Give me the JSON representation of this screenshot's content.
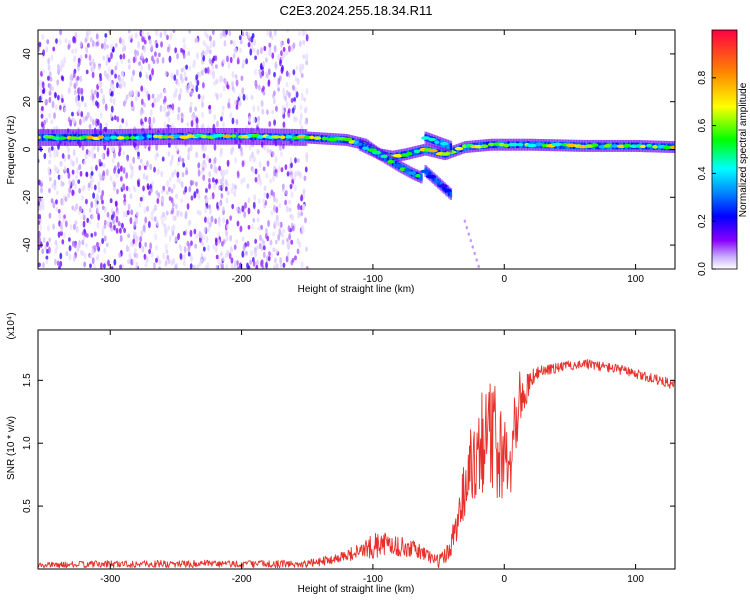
{
  "title": "C2E3.2024.255.18.34.R11",
  "chart_data": [
    {
      "type": "heatmap",
      "xlabel": "Height of straight line (km)",
      "ylabel": "Frequency (Hz)",
      "xlim": [
        -355,
        130
      ],
      "ylim": [
        -50,
        50
      ],
      "x_ticks": [
        -300,
        -200,
        -100,
        0,
        100
      ],
      "x_tick_labels": [
        "-300",
        "-200",
        "-100",
        "0",
        "100"
      ],
      "y_ticks": [
        -40,
        -20,
        0,
        20,
        40
      ],
      "y_tick_labels": [
        "-40",
        "-20",
        "0",
        "20",
        "40"
      ],
      "colorbar": {
        "label": "Normalized spectral amplitude",
        "range": [
          0,
          1
        ],
        "ticks": [
          0.0,
          0.2,
          0.4,
          0.6,
          0.8
        ],
        "tick_labels": [
          "0.0",
          "0.2",
          "0.4",
          "0.6",
          "0.8"
        ]
      },
      "ridges": [
        {
          "points": [
            [
              -355,
              5
            ],
            [
              -300,
              5
            ],
            [
              -250,
              5.5
            ],
            [
              -200,
              5.5
            ],
            [
              -150,
              5
            ],
            [
              -120,
              4
            ],
            [
              -105,
              2
            ],
            [
              -95,
              -2
            ],
            [
              -85,
              -3
            ],
            [
              -75,
              -2
            ],
            [
              -60,
              0
            ],
            [
              -45,
              -2
            ],
            [
              -30,
              1
            ],
            [
              -10,
              2
            ],
            [
              0,
              2
            ],
            [
              20,
              2
            ],
            [
              60,
              1.5
            ],
            [
              100,
              1.5
            ],
            [
              130,
              1
            ]
          ],
          "amplitude": 0.6
        },
        {
          "points": [
            [
              -110,
              2
            ],
            [
              -95,
              -2
            ],
            [
              -80,
              -7
            ],
            [
              -70,
              -10
            ],
            [
              -62,
              -12
            ]
          ],
          "amplitude": 0.45
        },
        {
          "points": [
            [
              -60,
              -9
            ],
            [
              -50,
              -14
            ],
            [
              -40,
              -19
            ]
          ],
          "amplitude": 0.3
        },
        {
          "points": [
            [
              -60,
              5
            ],
            [
              -50,
              3
            ],
            [
              -40,
              1
            ]
          ],
          "amplitude": 0.35
        }
      ],
      "noise_extent_km": [
        -355,
        -150
      ]
    },
    {
      "type": "line",
      "xlabel": "Height of straight line (km)",
      "ylabel": "SNR (10 * v/v)",
      "y_multiplier": "(x10⁴)",
      "xlim": [
        -355,
        130
      ],
      "ylim": [
        0,
        1.9
      ],
      "x_ticks": [
        -300,
        -200,
        -100,
        0,
        100
      ],
      "x_tick_labels": [
        "-300",
        "-200",
        "-100",
        "0",
        "100"
      ],
      "y_ticks": [
        0.5,
        1.0,
        1.5
      ],
      "y_tick_labels": [
        "0.5",
        "1.0",
        "1.5"
      ],
      "color": "#e8302a",
      "envelope": {
        "x": [
          -355,
          -300,
          -200,
          -150,
          -130,
          -110,
          -100,
          -90,
          -80,
          -70,
          -60,
          -50,
          -45,
          -40,
          -35,
          -30,
          -25,
          -20,
          -15,
          -10,
          -5,
          0,
          5,
          10,
          15,
          20,
          25,
          30,
          40,
          50,
          60,
          70,
          80,
          90,
          100,
          110,
          120,
          130
        ],
        "y": [
          0.03,
          0.04,
          0.04,
          0.04,
          0.08,
          0.14,
          0.18,
          0.2,
          0.18,
          0.16,
          0.12,
          0.06,
          0.1,
          0.2,
          0.45,
          0.65,
          0.85,
          1.0,
          1.05,
          1.05,
          1.0,
          0.9,
          1.0,
          1.3,
          1.4,
          1.5,
          1.55,
          1.58,
          1.6,
          1.62,
          1.63,
          1.62,
          1.6,
          1.58,
          1.55,
          1.52,
          1.5,
          1.45
        ],
        "noise": [
          0.02,
          0.03,
          0.03,
          0.03,
          0.04,
          0.06,
          0.1,
          0.1,
          0.08,
          0.07,
          0.06,
          0.05,
          0.08,
          0.12,
          0.2,
          0.25,
          0.35,
          0.4,
          0.45,
          0.45,
          0.45,
          0.45,
          0.4,
          0.3,
          0.15,
          0.08,
          0.06,
          0.05,
          0.04,
          0.04,
          0.04,
          0.04,
          0.04,
          0.04,
          0.04,
          0.04,
          0.04,
          0.04
        ]
      }
    }
  ]
}
